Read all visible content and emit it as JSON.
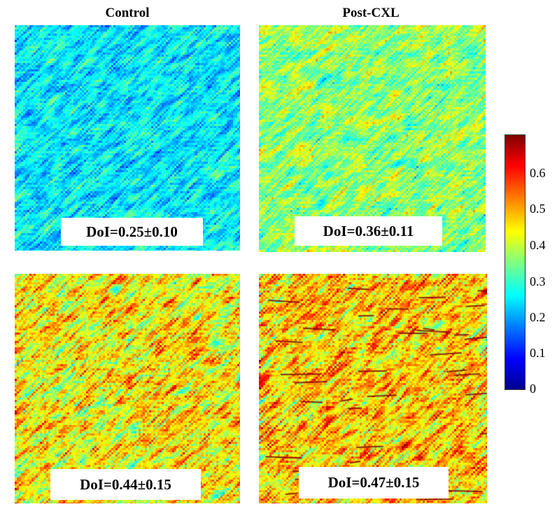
{
  "columns": {
    "left_title": "Control",
    "right_title": "Post-CXL"
  },
  "panels": [
    {
      "id": "top-left",
      "label": "DoI=0.25±0.10",
      "mean": 0.25,
      "sd": 0.1
    },
    {
      "id": "top-right",
      "label": "DoI=0.36±0.11",
      "mean": 0.36,
      "sd": 0.11
    },
    {
      "id": "bottom-left",
      "label": "DoI=0.44±0.15",
      "mean": 0.44,
      "sd": 0.15
    },
    {
      "id": "bottom-right",
      "label": "DoI=0.47±0.15",
      "mean": 0.47,
      "sd": 0.15
    }
  ],
  "colorbar": {
    "colormap": "jet",
    "min": 0,
    "max": 0.7,
    "ticks": [
      "0",
      "0.1",
      "0.2",
      "0.3",
      "0.4",
      "0.5",
      "0.6"
    ]
  }
}
